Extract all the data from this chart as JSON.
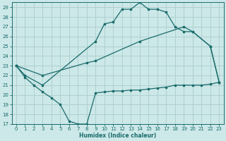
{
  "xlabel": "Humidex (Indice chaleur)",
  "xlim": [
    -0.5,
    23.5
  ],
  "ylim": [
    17,
    29.5
  ],
  "yticks": [
    17,
    18,
    19,
    20,
    21,
    22,
    23,
    24,
    25,
    26,
    27,
    28,
    29
  ],
  "xticks": [
    0,
    1,
    2,
    3,
    4,
    5,
    6,
    7,
    8,
    9,
    10,
    11,
    12,
    13,
    14,
    15,
    16,
    17,
    18,
    19,
    20,
    21,
    22,
    23
  ],
  "background_color": "#cce8e8",
  "grid_color": "#b0d0d0",
  "line_color": "#1a6b6b",
  "line_top_x": [
    0,
    1,
    3,
    9,
    10,
    11,
    12,
    13,
    14,
    15,
    16,
    17,
    18,
    19,
    20,
    22,
    23
  ],
  "line_top_y": [
    23,
    22,
    21,
    25.5,
    27.3,
    27.5,
    28.8,
    28.8,
    29.5,
    28.8,
    28.8,
    28.5,
    27.0,
    26.5,
    26.5,
    25.0,
    21.3
  ],
  "line_mid_x": [
    0,
    3,
    8,
    9,
    14,
    19,
    20,
    22,
    23
  ],
  "line_mid_y": [
    23,
    22,
    23.3,
    23.5,
    25.5,
    27.0,
    26.5,
    25.0,
    21.3
  ],
  "line_bot_x": [
    0,
    1,
    2,
    3,
    4,
    5,
    6,
    7,
    8,
    9,
    10,
    11,
    12,
    13,
    14,
    15,
    16,
    17,
    18,
    19,
    20,
    21,
    22,
    23
  ],
  "line_bot_y": [
    23,
    21.8,
    21.0,
    20.3,
    19.7,
    19.0,
    17.3,
    17.0,
    17.0,
    20.2,
    20.3,
    20.4,
    20.4,
    20.5,
    20.5,
    20.6,
    20.7,
    20.8,
    21.0,
    21.0,
    21.0,
    21.0,
    21.1,
    21.3
  ]
}
